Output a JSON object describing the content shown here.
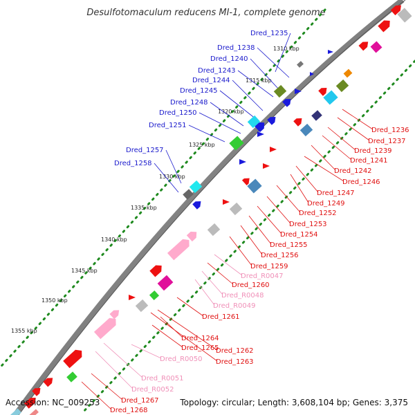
{
  "title": "Desulfotomaculum reducens MI-1, complete genome",
  "footer": {
    "accession": "Accession: NC_009253",
    "summary": "Topology: circular; Length: 3,608,104 bp; Genes: 3,375"
  },
  "colors": {
    "backbone": "#9a9a9a",
    "tick_dots": "#1f8a1f",
    "label_forward": "#1a1acc",
    "label_reverse_cds": "#e01010",
    "label_rna": "#f090b8"
  },
  "kbp_ticks": [
    "1310 kbp",
    "1315 kbp",
    "1320 kbp",
    "1325 kbp",
    "1330 kbp",
    "1335 kbp",
    "1340 kbp",
    "1345 kbp",
    "1350 kbp",
    "1355 kbp"
  ],
  "forward_labels": [
    "Dred_1235",
    "Dred_1238",
    "Dred_1240",
    "Dred_1243",
    "Dred_1244",
    "Dred_1245",
    "Dred_1248",
    "Dred_1250",
    "Dred_1251",
    "Dred_1257",
    "Dred_1258"
  ],
  "reverse_labels": [
    "Dred_1236",
    "Dred_1237",
    "Dred_1239",
    "Dred_1241",
    "Dred_1242",
    "Dred_1246",
    "Dred_1247",
    "Dred_1249",
    "Dred_1252",
    "Dred_1253",
    "Dred_1254",
    "Dred_1255",
    "Dred_1256",
    "Dred_1259",
    "Dred_R0047",
    "Dred_1260",
    "Dred_R0048",
    "Dred_R0049",
    "Dred_1261",
    "Dred_1264",
    "Dred_1262",
    "Dred_1265",
    "Dred_1263",
    "Dred_R0050",
    "Dred_R0051",
    "Dred_R0052",
    "Dred_1267",
    "Dred_1268"
  ]
}
